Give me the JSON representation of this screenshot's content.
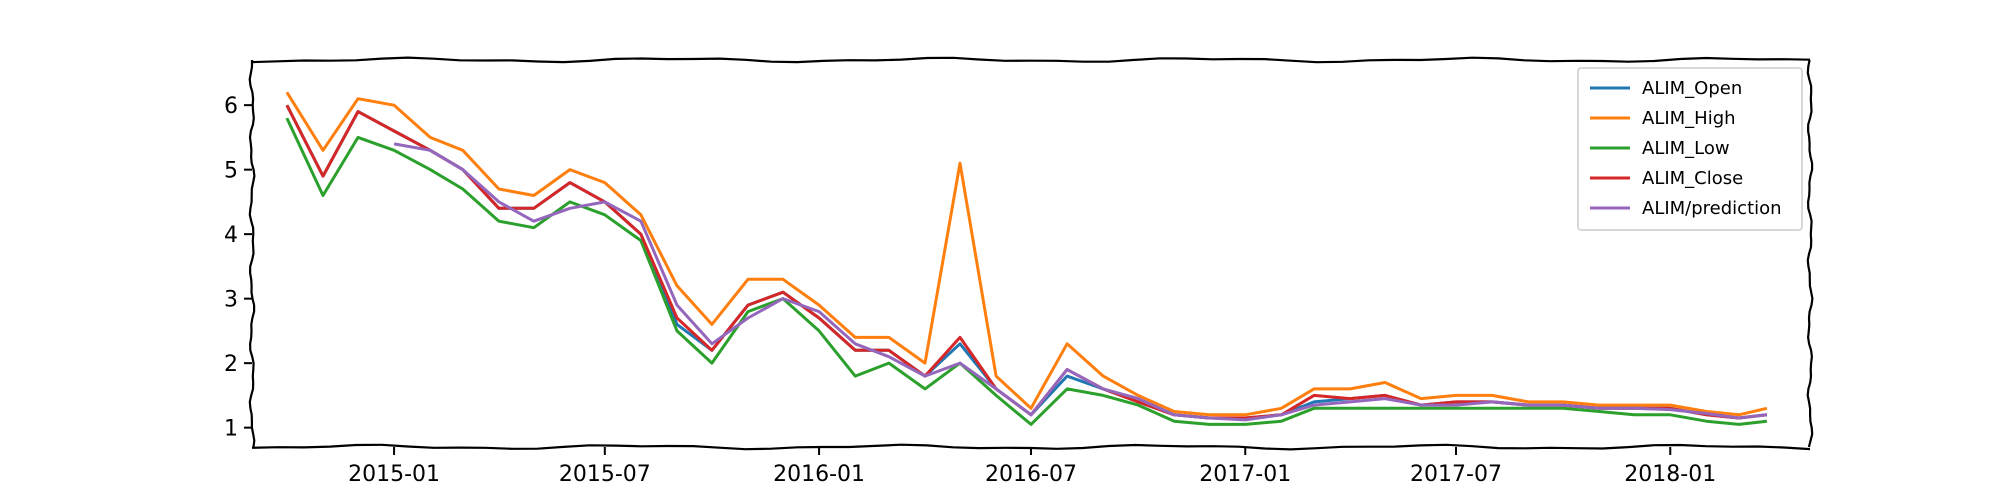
{
  "chart_data": {
    "type": "line",
    "title": "",
    "xlabel": "",
    "ylabel": "",
    "xlim": [
      "2014-09-01",
      "2018-05-01"
    ],
    "ylim": [
      0.7,
      6.7
    ],
    "x_ticks": [
      "2015-01",
      "2015-07",
      "2016-01",
      "2016-07",
      "2017-01",
      "2017-07",
      "2018-01"
    ],
    "y_ticks": [
      1,
      2,
      3,
      4,
      5,
      6
    ],
    "grid": false,
    "legend_position": "top-right",
    "x": [
      "2014-10-01",
      "2014-11-01",
      "2014-12-01",
      "2015-01-01",
      "2015-02-01",
      "2015-03-01",
      "2015-04-01",
      "2015-05-01",
      "2015-06-01",
      "2015-07-01",
      "2015-08-01",
      "2015-09-01",
      "2015-10-01",
      "2015-11-01",
      "2015-12-01",
      "2016-01-01",
      "2016-02-01",
      "2016-03-01",
      "2016-04-01",
      "2016-05-01",
      "2016-06-01",
      "2016-07-01",
      "2016-08-01",
      "2016-09-01",
      "2016-10-01",
      "2016-11-01",
      "2016-12-01",
      "2017-01-01",
      "2017-02-01",
      "2017-03-01",
      "2017-04-01",
      "2017-05-01",
      "2017-06-01",
      "2017-07-01",
      "2017-08-01",
      "2017-09-01",
      "2017-10-01",
      "2017-11-01",
      "2017-12-01",
      "2018-01-01",
      "2018-02-01",
      "2018-03-01",
      "2018-03-25"
    ],
    "series": [
      {
        "name": "ALIM_Open",
        "color": "#1f77b4",
        "values": [
          6.0,
          4.9,
          5.9,
          5.6,
          5.3,
          5.0,
          4.4,
          4.4,
          4.8,
          4.5,
          4.0,
          2.6,
          2.2,
          2.9,
          3.1,
          2.7,
          2.2,
          2.2,
          1.8,
          2.3,
          1.6,
          1.2,
          1.8,
          1.6,
          1.4,
          1.2,
          1.15,
          1.15,
          1.2,
          1.4,
          1.45,
          1.5,
          1.35,
          1.4,
          1.4,
          1.35,
          1.35,
          1.3,
          1.3,
          1.3,
          1.2,
          1.15,
          1.2
        ]
      },
      {
        "name": "ALIM_High",
        "color": "#ff7f0e",
        "values": [
          6.2,
          5.3,
          6.1,
          6.0,
          5.5,
          5.3,
          4.7,
          4.6,
          5.0,
          4.8,
          4.3,
          3.2,
          2.6,
          3.3,
          3.3,
          2.9,
          2.4,
          2.4,
          2.0,
          5.1,
          1.8,
          1.3,
          2.3,
          1.8,
          1.5,
          1.25,
          1.2,
          1.2,
          1.3,
          1.6,
          1.6,
          1.7,
          1.45,
          1.5,
          1.5,
          1.4,
          1.4,
          1.35,
          1.35,
          1.35,
          1.25,
          1.2,
          1.3
        ]
      },
      {
        "name": "ALIM_Low",
        "color": "#2ca02c",
        "values": [
          5.8,
          4.6,
          5.5,
          5.3,
          5.0,
          4.7,
          4.2,
          4.1,
          4.5,
          4.3,
          3.9,
          2.5,
          2.0,
          2.8,
          3.0,
          2.5,
          1.8,
          2.0,
          1.6,
          2.0,
          1.5,
          1.05,
          1.6,
          1.5,
          1.35,
          1.1,
          1.05,
          1.05,
          1.1,
          1.3,
          1.3,
          1.3,
          1.3,
          1.3,
          1.3,
          1.3,
          1.3,
          1.25,
          1.2,
          1.2,
          1.1,
          1.05,
          1.1
        ]
      },
      {
        "name": "ALIM_Close",
        "color": "#d62728",
        "values": [
          6.0,
          4.9,
          5.9,
          5.6,
          5.3,
          5.0,
          4.4,
          4.4,
          4.8,
          4.5,
          4.0,
          2.7,
          2.2,
          2.9,
          3.1,
          2.7,
          2.2,
          2.2,
          1.8,
          2.4,
          1.6,
          1.2,
          1.9,
          1.6,
          1.4,
          1.2,
          1.15,
          1.15,
          1.2,
          1.5,
          1.45,
          1.5,
          1.35,
          1.4,
          1.4,
          1.35,
          1.35,
          1.3,
          1.3,
          1.3,
          1.2,
          1.15,
          1.2
        ]
      },
      {
        "name": "ALIM/prediction",
        "color": "#9467bd",
        "values": [
          null,
          null,
          null,
          5.4,
          5.3,
          5.0,
          4.5,
          4.2,
          4.4,
          4.5,
          4.2,
          2.9,
          2.3,
          2.7,
          3.0,
          2.8,
          2.3,
          2.1,
          1.8,
          2.0,
          1.6,
          1.2,
          1.9,
          1.6,
          1.45,
          1.2,
          1.15,
          1.12,
          1.2,
          1.35,
          1.4,
          1.45,
          1.35,
          1.35,
          1.4,
          1.35,
          1.35,
          1.3,
          1.3,
          1.28,
          1.22,
          1.15,
          1.2
        ]
      }
    ]
  }
}
